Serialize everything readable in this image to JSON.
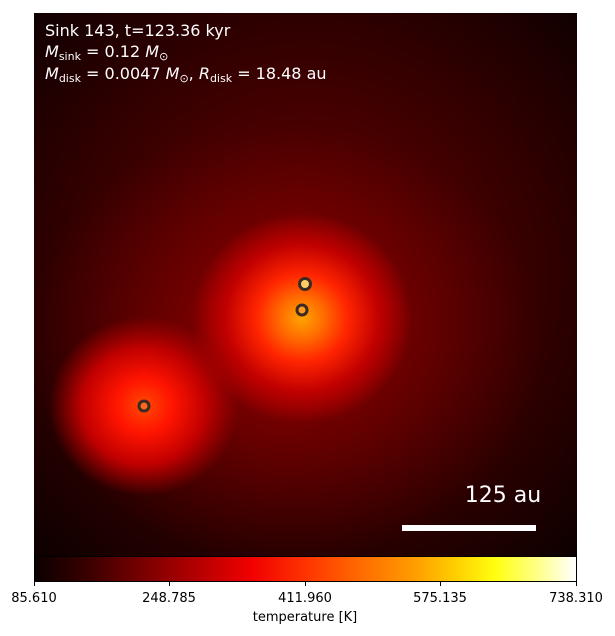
{
  "title_line": "Sink 143, t=123.36 kyr",
  "m_sink": {
    "symbol": "M",
    "subscript": "sink",
    "value": "= 0.12",
    "unit": "M",
    "unit_sub": "⊙"
  },
  "m_disk": {
    "symbol": "M",
    "subscript": "disk",
    "value": "= 0.0047",
    "unit": "M",
    "unit_sub": "⊙"
  },
  "r_disk": {
    "symbol": "R",
    "subscript": "disk",
    "value": "= 18.48",
    "unit": "au"
  },
  "scale_bar_label": "125 au",
  "colorbar": {
    "label": "temperature [K]",
    "ticks": [
      "85.610",
      "248.785",
      "411.960",
      "575.135",
      "738.310"
    ],
    "colormap": "hot"
  },
  "sinks": [
    "sink-a",
    "sink-b",
    "sink-c"
  ]
}
